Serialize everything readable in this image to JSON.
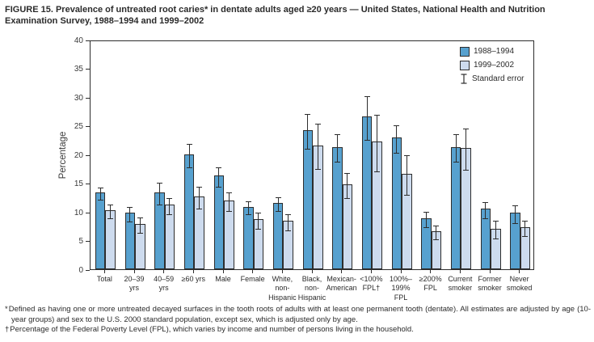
{
  "title": "FIGURE 15. Prevalence of untreated root caries* in dentate adults aged ≥20 years — United States, National Health and Nutrition Examination Survey, 1988–1994 and 1999–2002",
  "legend": {
    "series_1_label": "1988–1994",
    "series_2_label": "1999–2002",
    "error_label": "Standard error"
  },
  "chart_data": {
    "type": "bar",
    "title": "",
    "xlabel": "",
    "ylabel": "Percentage",
    "ylim": [
      0,
      40
    ],
    "yticks": [
      0,
      5,
      10,
      15,
      20,
      25,
      30,
      35,
      40
    ],
    "grid": false,
    "legend_position": "top-right-inside",
    "error_bars": "standard error",
    "categories": [
      "Total",
      "20–39\nyrs",
      "40–59\nyrs",
      "≥60 yrs",
      "Male",
      "Female",
      "White,\nnon-\nHispanic",
      "Black,\nnon-\nHispanic",
      "Mexican-\nAmerican",
      "<100%\nFPL†",
      "100%–\n199%\nFPL",
      "≥200%\nFPL",
      "Current\nsmoker",
      "Former\nsmoker",
      "Never\nsmoked"
    ],
    "series": [
      {
        "name": "1988–1994",
        "color": "#57a1cf",
        "values": [
          13.4,
          9.8,
          13.4,
          20.0,
          16.3,
          10.9,
          11.5,
          24.2,
          21.3,
          26.6,
          22.9,
          8.9,
          21.3,
          10.5,
          9.8
        ],
        "standard_errors": [
          1.1,
          1.3,
          1.9,
          2.0,
          1.7,
          1.1,
          1.2,
          3.0,
          2.4,
          3.8,
          2.4,
          1.3,
          2.4,
          1.4,
          1.5
        ]
      },
      {
        "name": "1999–2002",
        "color": "#cddbee",
        "values": [
          10.3,
          7.9,
          11.2,
          12.7,
          12.0,
          8.7,
          8.4,
          21.6,
          14.8,
          22.2,
          16.6,
          6.6,
          21.1,
          7.1,
          7.3
        ],
        "standard_errors": [
          1.2,
          1.3,
          1.4,
          1.9,
          1.6,
          1.4,
          1.4,
          3.9,
          2.2,
          4.9,
          3.5,
          1.2,
          3.6,
          1.5,
          1.3
        ]
      }
    ]
  },
  "footnotes": [
    {
      "marker": "*",
      "text": "Defined as having one or more untreated decayed surfaces in the tooth roots of adults with at least one permanent tooth (dentate). All estimates are adjusted by age (10-year groups) and sex to the U.S. 2000 standard population, except sex, which is adjusted only by age."
    },
    {
      "marker": "†",
      "text": "Percentage of the Federal Poverty Level (FPL), which varies by income and number of persons living in the household."
    }
  ],
  "colors": {
    "series_1988_1994": "#57a1cf",
    "series_1999_2002": "#cddbee",
    "axis": "#2d2d2d",
    "text": "#2b2b2b"
  }
}
